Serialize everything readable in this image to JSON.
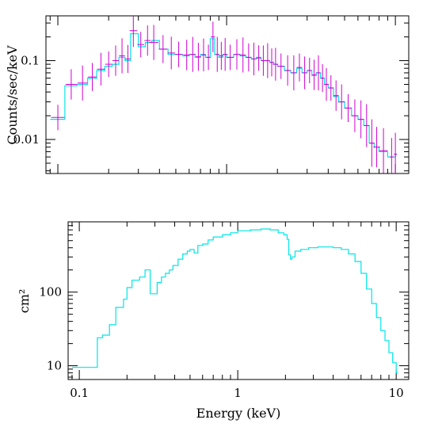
{
  "chart_data": [
    {
      "type": "line",
      "panel": "counts-spectrum",
      "ylabel": "Counts/sec/keV",
      "xlabel": "",
      "xscale": "log",
      "yscale": "log",
      "xlim": [
        0.085,
        12
      ],
      "ylim": [
        0.0037,
        0.37
      ],
      "y_tick_labels": [
        "0.01",
        "0.1"
      ],
      "y_ticks": [
        0.01,
        0.1
      ],
      "x_ticks": [
        0.1,
        1,
        10
      ],
      "grid": false,
      "series": [
        {
          "kind": "model-step",
          "color": "#00e5e5",
          "x": [
            0.09,
            0.11,
            0.13,
            0.15,
            0.17,
            0.19,
            0.21,
            0.23,
            0.25,
            0.27,
            0.3,
            0.33,
            0.36,
            0.4,
            0.45,
            0.5,
            0.55,
            0.6,
            0.65,
            0.7,
            0.75,
            0.8,
            0.85,
            0.9,
            0.95,
            1.0,
            1.1,
            1.2,
            1.3,
            1.4,
            1.5,
            1.6,
            1.7,
            1.8,
            1.9,
            2.0,
            2.2,
            2.4,
            2.6,
            2.8,
            3.0,
            3.2,
            3.4,
            3.6,
            3.8,
            4.0,
            4.3,
            4.6,
            5.0,
            5.5,
            6.0,
            6.5,
            7.0,
            7.5,
            8.0,
            9.0,
            10.0
          ],
          "y": [
            0.018,
            0.048,
            0.05,
            0.06,
            0.075,
            0.085,
            0.09,
            0.11,
            0.1,
            0.22,
            0.15,
            0.17,
            0.18,
            0.14,
            0.12,
            0.12,
            0.115,
            0.12,
            0.11,
            0.12,
            0.11,
            0.19,
            0.12,
            0.11,
            0.12,
            0.11,
            0.12,
            0.115,
            0.11,
            0.105,
            0.11,
            0.1,
            0.1,
            0.095,
            0.09,
            0.085,
            0.075,
            0.07,
            0.08,
            0.07,
            0.075,
            0.065,
            0.07,
            0.06,
            0.05,
            0.045,
            0.035,
            0.03,
            0.025,
            0.02,
            0.018,
            0.015,
            0.009,
            0.008,
            0.007,
            0.006,
            0.0065
          ]
        },
        {
          "kind": "data-with-errors",
          "color": "#d100d1",
          "x": [
            0.1,
            0.12,
            0.14,
            0.16,
            0.18,
            0.2,
            0.22,
            0.24,
            0.26,
            0.28,
            0.31,
            0.34,
            0.37,
            0.42,
            0.47,
            0.52,
            0.58,
            0.63,
            0.68,
            0.73,
            0.78,
            0.83,
            0.88,
            0.93,
            0.98,
            1.05,
            1.15,
            1.25,
            1.35,
            1.45,
            1.55,
            1.65,
            1.75,
            1.85,
            1.95,
            2.1,
            2.3,
            2.5,
            2.7,
            2.9,
            3.1,
            3.3,
            3.5,
            3.7,
            3.9,
            4.15,
            4.45,
            4.8,
            5.25,
            5.75,
            6.25,
            6.75,
            7.25,
            7.75,
            8.5,
            9.5,
            10.0
          ],
          "y": [
            0.019,
            0.05,
            0.052,
            0.062,
            0.078,
            0.09,
            0.1,
            0.115,
            0.105,
            0.24,
            0.16,
            0.18,
            0.17,
            0.14,
            0.125,
            0.12,
            0.118,
            0.12,
            0.112,
            0.118,
            0.11,
            0.2,
            0.12,
            0.115,
            0.12,
            0.11,
            0.12,
            0.118,
            0.11,
            0.105,
            0.108,
            0.1,
            0.1,
            0.095,
            0.09,
            0.085,
            0.075,
            0.07,
            0.082,
            0.07,
            0.075,
            0.066,
            0.07,
            0.06,
            0.05,
            0.045,
            0.036,
            0.03,
            0.025,
            0.02,
            0.018,
            0.015,
            0.009,
            0.008,
            0.0072,
            0.006,
            0.0065
          ],
          "yerr_factor": 1.45
        }
      ]
    },
    {
      "type": "line",
      "panel": "effective-area",
      "ylabel": "cm²",
      "xlabel": "Energy (keV)",
      "xscale": "log",
      "yscale": "log",
      "xlim": [
        0.085,
        12
      ],
      "ylim": [
        6.5,
        900
      ],
      "x_tick_labels": [
        "0.1",
        "1",
        "10"
      ],
      "x_ticks": [
        0.1,
        1,
        10
      ],
      "y_tick_labels": [
        "10",
        "100"
      ],
      "y_ticks": [
        10,
        100
      ],
      "grid": false,
      "series": [
        {
          "kind": "model-step",
          "color": "#00e5e5",
          "x": [
            0.09,
            0.13,
            0.14,
            0.155,
            0.17,
            0.19,
            0.2,
            0.215,
            0.24,
            0.26,
            0.28,
            0.31,
            0.33,
            0.35,
            0.37,
            0.39,
            0.42,
            0.45,
            0.48,
            0.5,
            0.53,
            0.56,
            0.6,
            0.65,
            0.7,
            0.8,
            0.9,
            1.0,
            1.2,
            1.4,
            1.6,
            1.8,
            1.95,
            2.05,
            2.1,
            2.15,
            2.2,
            2.3,
            2.5,
            2.8,
            3.2,
            3.6,
            4.0,
            4.5,
            5.0,
            5.5,
            6.0,
            6.5,
            7.0,
            7.5,
            8.0,
            8.5,
            9.0,
            9.5,
            10.0
          ],
          "x_step_note": "",
          "y": [
            9.5,
            24,
            26,
            36,
            62,
            80,
            115,
            145,
            160,
            200,
            95,
            135,
            160,
            180,
            200,
            230,
            280,
            330,
            360,
            380,
            340,
            430,
            450,
            510,
            560,
            600,
            640,
            680,
            700,
            720,
            700,
            640,
            600,
            520,
            320,
            280,
            300,
            360,
            380,
            400,
            410,
            410,
            400,
            380,
            330,
            260,
            180,
            110,
            70,
            45,
            30,
            22,
            15,
            11,
            8
          ]
        }
      ]
    }
  ]
}
